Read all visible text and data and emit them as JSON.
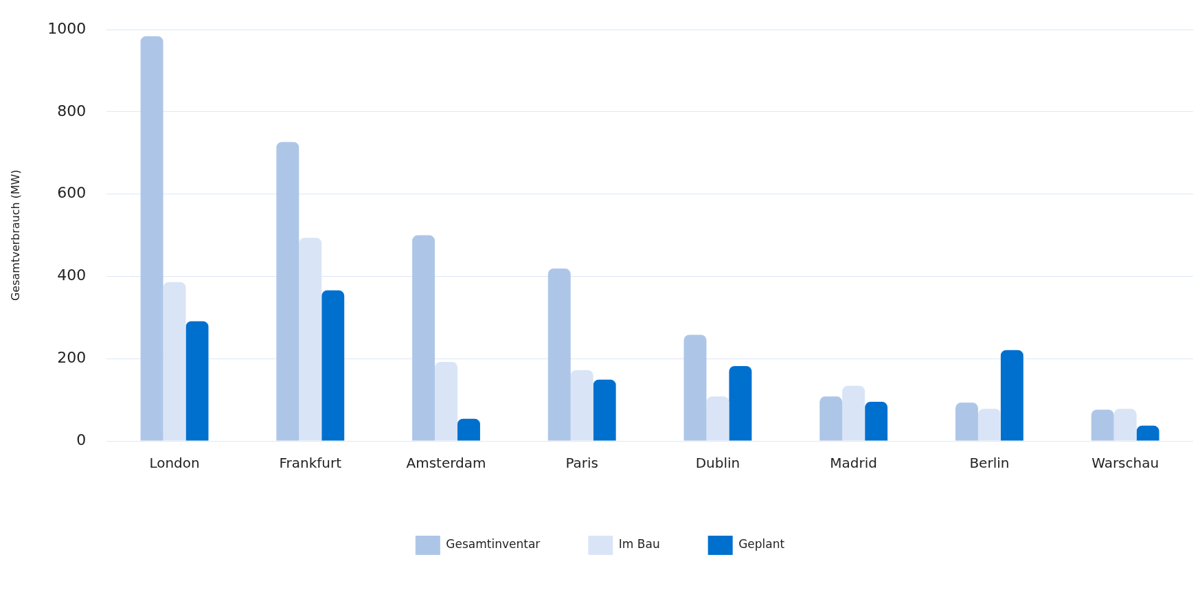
{
  "chart_data": {
    "type": "bar",
    "ylabel": "Gesamtverbrauch (MW)",
    "categories": [
      "London",
      "Frankfurt",
      "Amsterdam",
      "Paris",
      "Dublin",
      "Madrid",
      "Berlin",
      "Warschau"
    ],
    "series": [
      {
        "name": "Gesamtinventar",
        "color": "#adc6e8",
        "values": [
          984,
          727,
          500,
          419,
          258,
          108,
          93,
          76
        ]
      },
      {
        "name": "Im Bau",
        "color": "#d9e5f6",
        "values": [
          386,
          494,
          192,
          172,
          108,
          134,
          78,
          78
        ]
      },
      {
        "name": "Geplant",
        "color": "#0070cf",
        "values": [
          291,
          366,
          54,
          149,
          182,
          95,
          221,
          37
        ]
      }
    ],
    "ylim": [
      0,
      1000
    ],
    "yticks": [
      0,
      200,
      400,
      600,
      800,
      1000
    ],
    "grid": "y",
    "legend": "bottom"
  }
}
